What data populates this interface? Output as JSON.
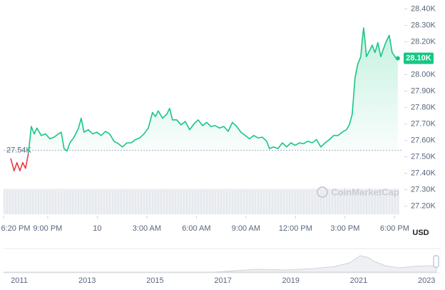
{
  "chart_data": {
    "type": "line",
    "currency": "USD",
    "watermark": "CoinMarketCap",
    "open_price": {
      "value": 27540,
      "label": "27.54K"
    },
    "current_price": {
      "value": 28100,
      "label": "28.10K"
    },
    "xlim": [
      18.33,
      42.5
    ],
    "xticks": [
      {
        "value": 18.33,
        "label": "6:20 PM"
      },
      {
        "value": 21,
        "label": "9:00 PM"
      },
      {
        "value": 24,
        "label": "10"
      },
      {
        "value": 27,
        "label": "3:00 AM"
      },
      {
        "value": 30,
        "label": "6:00 AM"
      },
      {
        "value": 33,
        "label": "9:00 AM"
      },
      {
        "value": 36,
        "label": "12:00 PM"
      },
      {
        "value": 39,
        "label": "3:00 PM"
      },
      {
        "value": 42,
        "label": "6:00 PM"
      }
    ],
    "ylim": [
      27150,
      28455
    ],
    "yticks": [
      {
        "value": 28400,
        "label": "28.40K"
      },
      {
        "value": 28300,
        "label": "28.30K"
      },
      {
        "value": 28200,
        "label": "28.20K"
      },
      {
        "value": 28000,
        "label": "28.00K"
      },
      {
        "value": 27900,
        "label": "27.90K"
      },
      {
        "value": 27800,
        "label": "27.80K"
      },
      {
        "value": 27700,
        "label": "27.70K"
      },
      {
        "value": 27600,
        "label": "27.60K"
      },
      {
        "value": 27500,
        "label": "27.50K"
      },
      {
        "value": 27400,
        "label": "27.40K"
      },
      {
        "value": 27300,
        "label": "27.30K"
      },
      {
        "value": 27200,
        "label": "27.20K"
      }
    ],
    "series": [
      {
        "color": "#ea3943",
        "x": [
          18.76,
          18.97,
          19.14,
          19.32,
          19.49,
          19.66,
          19.83
        ],
        "values": [
          27490,
          27415,
          27465,
          27415,
          27465,
          27430,
          27520
        ]
      },
      {
        "color": "#16c784",
        "x": [
          19.83,
          20.01,
          20.18,
          20.35,
          20.61,
          20.87,
          21.13,
          21.39,
          21.65,
          21.82,
          21.99,
          22.17,
          22.34,
          22.6,
          22.86,
          23.03,
          23.2,
          23.46,
          23.72,
          23.98,
          24.24,
          24.5,
          24.75,
          25.01,
          25.27,
          25.53,
          25.79,
          26.05,
          26.31,
          26.57,
          26.83,
          27.09,
          27.34,
          27.52,
          27.69,
          27.95,
          28.21,
          28.38,
          28.55,
          28.81,
          29.07,
          29.33,
          29.59,
          29.85,
          30.11,
          30.37,
          30.62,
          30.88,
          31.14,
          31.4,
          31.66,
          31.92,
          32.18,
          32.44,
          32.7,
          32.96,
          33.21,
          33.47,
          33.73,
          33.99,
          34.25,
          34.42,
          34.68,
          34.94,
          35.2,
          35.46,
          35.72,
          35.98,
          36.24,
          36.49,
          36.75,
          37.01,
          37.27,
          37.53,
          37.79,
          38.05,
          38.31,
          38.57,
          38.82,
          39.08,
          39.26,
          39.43,
          39.6,
          39.77,
          39.95,
          40.03,
          40.12,
          40.21,
          40.29,
          40.47,
          40.64,
          40.81,
          40.98,
          41.16,
          41.33,
          41.5,
          41.67,
          41.85,
          42.02,
          42.19
        ],
        "values": [
          27520,
          27685,
          27640,
          27675,
          27630,
          27640,
          27610,
          27620,
          27640,
          27650,
          27550,
          27535,
          27585,
          27620,
          27675,
          27735,
          27650,
          27665,
          27640,
          27650,
          27630,
          27655,
          27640,
          27595,
          27580,
          27560,
          27585,
          27585,
          27605,
          27615,
          27640,
          27675,
          27770,
          27745,
          27780,
          27735,
          27760,
          27795,
          27725,
          27725,
          27695,
          27715,
          27665,
          27700,
          27725,
          27690,
          27710,
          27685,
          27690,
          27675,
          27685,
          27655,
          27710,
          27685,
          27650,
          27630,
          27610,
          27630,
          27615,
          27620,
          27595,
          27550,
          27560,
          27550,
          27585,
          27560,
          27585,
          27570,
          27585,
          27580,
          27595,
          27585,
          27605,
          27560,
          27585,
          27605,
          27630,
          27630,
          27650,
          27665,
          27695,
          27760,
          27980,
          28065,
          28110,
          28205,
          28285,
          28205,
          28110,
          28145,
          28180,
          28135,
          28195,
          28110,
          28160,
          28205,
          28240,
          28135,
          28110,
          28090
        ]
      }
    ],
    "range_labels": [
      "2011",
      "2013",
      "2015",
      "2017",
      "2019",
      "2021",
      "2023"
    ]
  }
}
